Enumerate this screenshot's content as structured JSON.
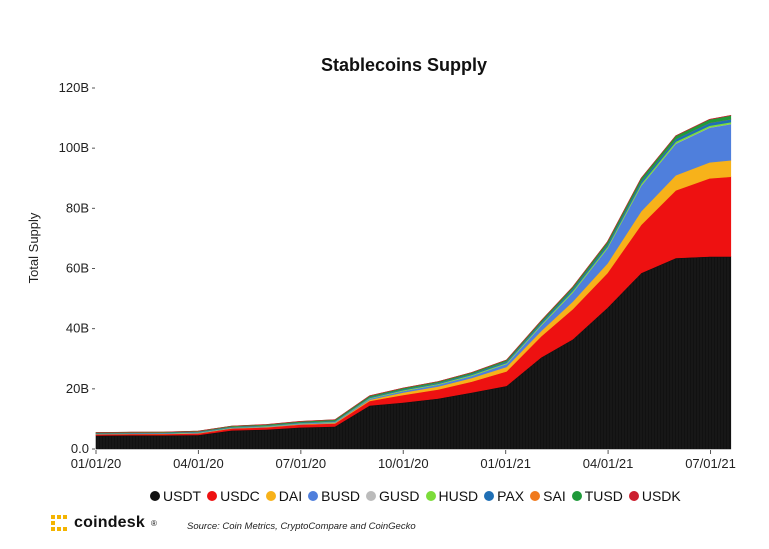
{
  "chart_data": {
    "type": "area",
    "title": "Stablecoins Supply",
    "ylabel": "Total Supply",
    "xlabel": "",
    "ylim": [
      0,
      120
    ],
    "y_unit": "billions USD",
    "yticks": [
      "0.0",
      "20B",
      "40B",
      "60B",
      "80B",
      "100B",
      "120B"
    ],
    "ytick_values": [
      0,
      20,
      40,
      60,
      80,
      100,
      120
    ],
    "xticks": [
      "01/01/20",
      "04/01/20",
      "07/01/20",
      "10/01/20",
      "01/01/21",
      "04/01/21",
      "07/01/21"
    ],
    "xtick_months": [
      0,
      3,
      6,
      9,
      12,
      15,
      18
    ],
    "x_range_months": [
      0,
      18.6
    ],
    "x": [
      "2020-01-01",
      "2020-02-01",
      "2020-03-01",
      "2020-04-01",
      "2020-05-01",
      "2020-06-01",
      "2020-07-01",
      "2020-08-01",
      "2020-09-01",
      "2020-10-01",
      "2020-11-01",
      "2020-12-01",
      "2021-01-01",
      "2021-02-01",
      "2021-03-01",
      "2021-04-01",
      "2021-05-01",
      "2021-06-01",
      "2021-07-01",
      "2021-07-20"
    ],
    "series": [
      {
        "name": "USDT",
        "color": "#111111",
        "values": [
          4.5,
          4.6,
          4.6,
          4.7,
          6.2,
          6.5,
          7.2,
          7.5,
          14.5,
          15.5,
          16.8,
          18.8,
          21.0,
          30.5,
          36.5,
          47.0,
          58.5,
          63.5,
          64.0,
          64.0
        ]
      },
      {
        "name": "USDC",
        "color": "#ee1111",
        "values": [
          0.4,
          0.4,
          0.4,
          0.5,
          0.6,
          0.7,
          0.9,
          1.0,
          1.5,
          2.5,
          3.0,
          3.6,
          4.8,
          7.0,
          10.0,
          11.5,
          16.0,
          22.5,
          26.0,
          26.5
        ]
      },
      {
        "name": "DAI",
        "color": "#f7b21a",
        "values": [
          0.05,
          0.05,
          0.1,
          0.1,
          0.1,
          0.1,
          0.15,
          0.2,
          0.4,
          0.8,
          1.0,
          1.2,
          1.5,
          1.8,
          2.5,
          3.2,
          4.5,
          5.0,
          5.3,
          5.5
        ]
      },
      {
        "name": "BUSD",
        "color": "#4f7fdc",
        "values": [
          0.1,
          0.1,
          0.1,
          0.15,
          0.15,
          0.2,
          0.2,
          0.25,
          0.35,
          0.5,
          0.6,
          0.7,
          1.0,
          1.8,
          3.0,
          5.0,
          8.5,
          10.5,
          11.5,
          12.0
        ]
      },
      {
        "name": "GUSD",
        "color": "#bbbbbb",
        "values": [
          0.01,
          0.01,
          0.01,
          0.01,
          0.01,
          0.01,
          0.01,
          0.01,
          0.02,
          0.02,
          0.02,
          0.02,
          0.03,
          0.05,
          0.06,
          0.06,
          0.07,
          0.08,
          0.08,
          0.08
        ]
      },
      {
        "name": "HUSD",
        "color": "#7cdc3a",
        "values": [
          0.05,
          0.05,
          0.05,
          0.08,
          0.1,
          0.12,
          0.15,
          0.15,
          0.2,
          0.25,
          0.25,
          0.3,
          0.3,
          0.4,
          0.5,
          0.5,
          0.6,
          0.6,
          0.6,
          0.6
        ]
      },
      {
        "name": "PAX",
        "color": "#1f6fb5",
        "values": [
          0.2,
          0.2,
          0.2,
          0.25,
          0.25,
          0.25,
          0.25,
          0.25,
          0.3,
          0.3,
          0.35,
          0.4,
          0.5,
          0.6,
          0.7,
          0.8,
          0.9,
          0.9,
          0.95,
          0.95
        ]
      },
      {
        "name": "SAI",
        "color": "#f07a1d",
        "values": [
          0.03,
          0.03,
          0.03,
          0.02,
          0.02,
          0.02,
          0.02,
          0.02,
          0.02,
          0.02,
          0.02,
          0.02,
          0.02,
          0.02,
          0.02,
          0.02,
          0.02,
          0.02,
          0.02,
          0.02
        ]
      },
      {
        "name": "TUSD",
        "color": "#1f9a3a",
        "values": [
          0.15,
          0.15,
          0.15,
          0.15,
          0.2,
          0.25,
          0.3,
          0.35,
          0.4,
          0.4,
          0.35,
          0.4,
          0.45,
          0.5,
          0.6,
          0.8,
          0.9,
          1.0,
          1.1,
          1.2
        ]
      },
      {
        "name": "USDK",
        "color": "#cc1f2f",
        "values": [
          0.02,
          0.02,
          0.02,
          0.02,
          0.02,
          0.02,
          0.02,
          0.02,
          0.03,
          0.03,
          0.03,
          0.03,
          0.03,
          0.03,
          0.03,
          0.03,
          0.03,
          0.03,
          0.03,
          0.03
        ]
      }
    ],
    "grid": false,
    "legend_position": "bottom"
  },
  "footer": {
    "brand": "coindesk",
    "brand_mark": "®",
    "source": "Source: Coin Metrics, CryptoCompare and CoinGecko"
  }
}
